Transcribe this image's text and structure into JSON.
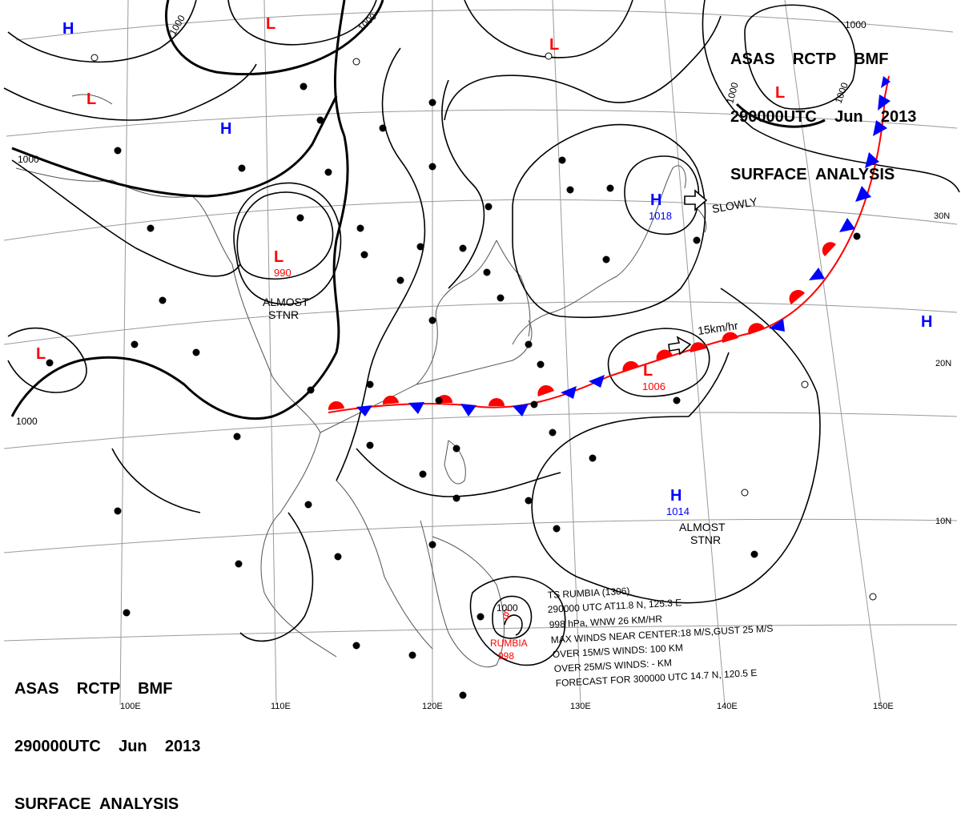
{
  "header_top": {
    "line1": "ASAS    RCTP    BMF",
    "line2": "290000UTC    Jun    2013",
    "line3": "SURFACE  ANALYSIS"
  },
  "header_bottom": {
    "line1": "ASAS    RCTP    BMF",
    "line2": "290000UTC    Jun    2013",
    "line3": "SURFACE  ANALYSIS"
  },
  "longitude_labels": [
    "100E",
    "110E",
    "120E",
    "130E",
    "140E",
    "150E"
  ],
  "latitude_labels": [
    "30N",
    "20N",
    "10N"
  ],
  "pressure_centers": [
    {
      "type": "H",
      "value": ""
    },
    {
      "type": "L",
      "value": ""
    },
    {
      "type": "L",
      "value": ""
    },
    {
      "type": "H",
      "value": ""
    },
    {
      "type": "L",
      "value": ""
    },
    {
      "type": "L",
      "value": "990"
    },
    {
      "type": "L",
      "value": ""
    },
    {
      "type": "H",
      "value": "1018"
    },
    {
      "type": "L",
      "value": "1006"
    },
    {
      "type": "H",
      "value": ""
    },
    {
      "type": "H",
      "value": "1014"
    },
    {
      "type": "L",
      "value": ""
    }
  ],
  "isobar_labels": [
    "1000",
    "1000",
    "1000",
    "1000",
    "1000",
    "1000",
    "1000"
  ],
  "annotations": {
    "almost_stnr_1": "ALMOST\nSTNR",
    "almost_stnr_2": "ALMOST\nSTNR",
    "slowly": "SLOWLY",
    "speed": "15km/hr"
  },
  "typhoon_name": "RUMBIA",
  "typhoon_pressure": "998",
  "typhoon_isobar": "1000",
  "storm_info": [
    "TS  RUMBIA  (1306)",
    "290000 UTC  AT11.8 N, 125.3 E",
    "998 hPa, WNW  26 KM/HR",
    "MAX WINDS NEAR CENTER:18 M/S,GUST 25 M/S",
    "OVER 15M/S WINDS: 100 KM",
    "OVER 25M/S WINDS: - KM",
    "FORECAST FOR 300000 UTC 14.7 N, 120.5 E"
  ],
  "colors": {
    "high": "#0000ff",
    "low": "#ff0000",
    "cold_front": "#0000ff",
    "warm_front": "#ff0000",
    "isobar": "#000000",
    "grid": "#808080"
  }
}
